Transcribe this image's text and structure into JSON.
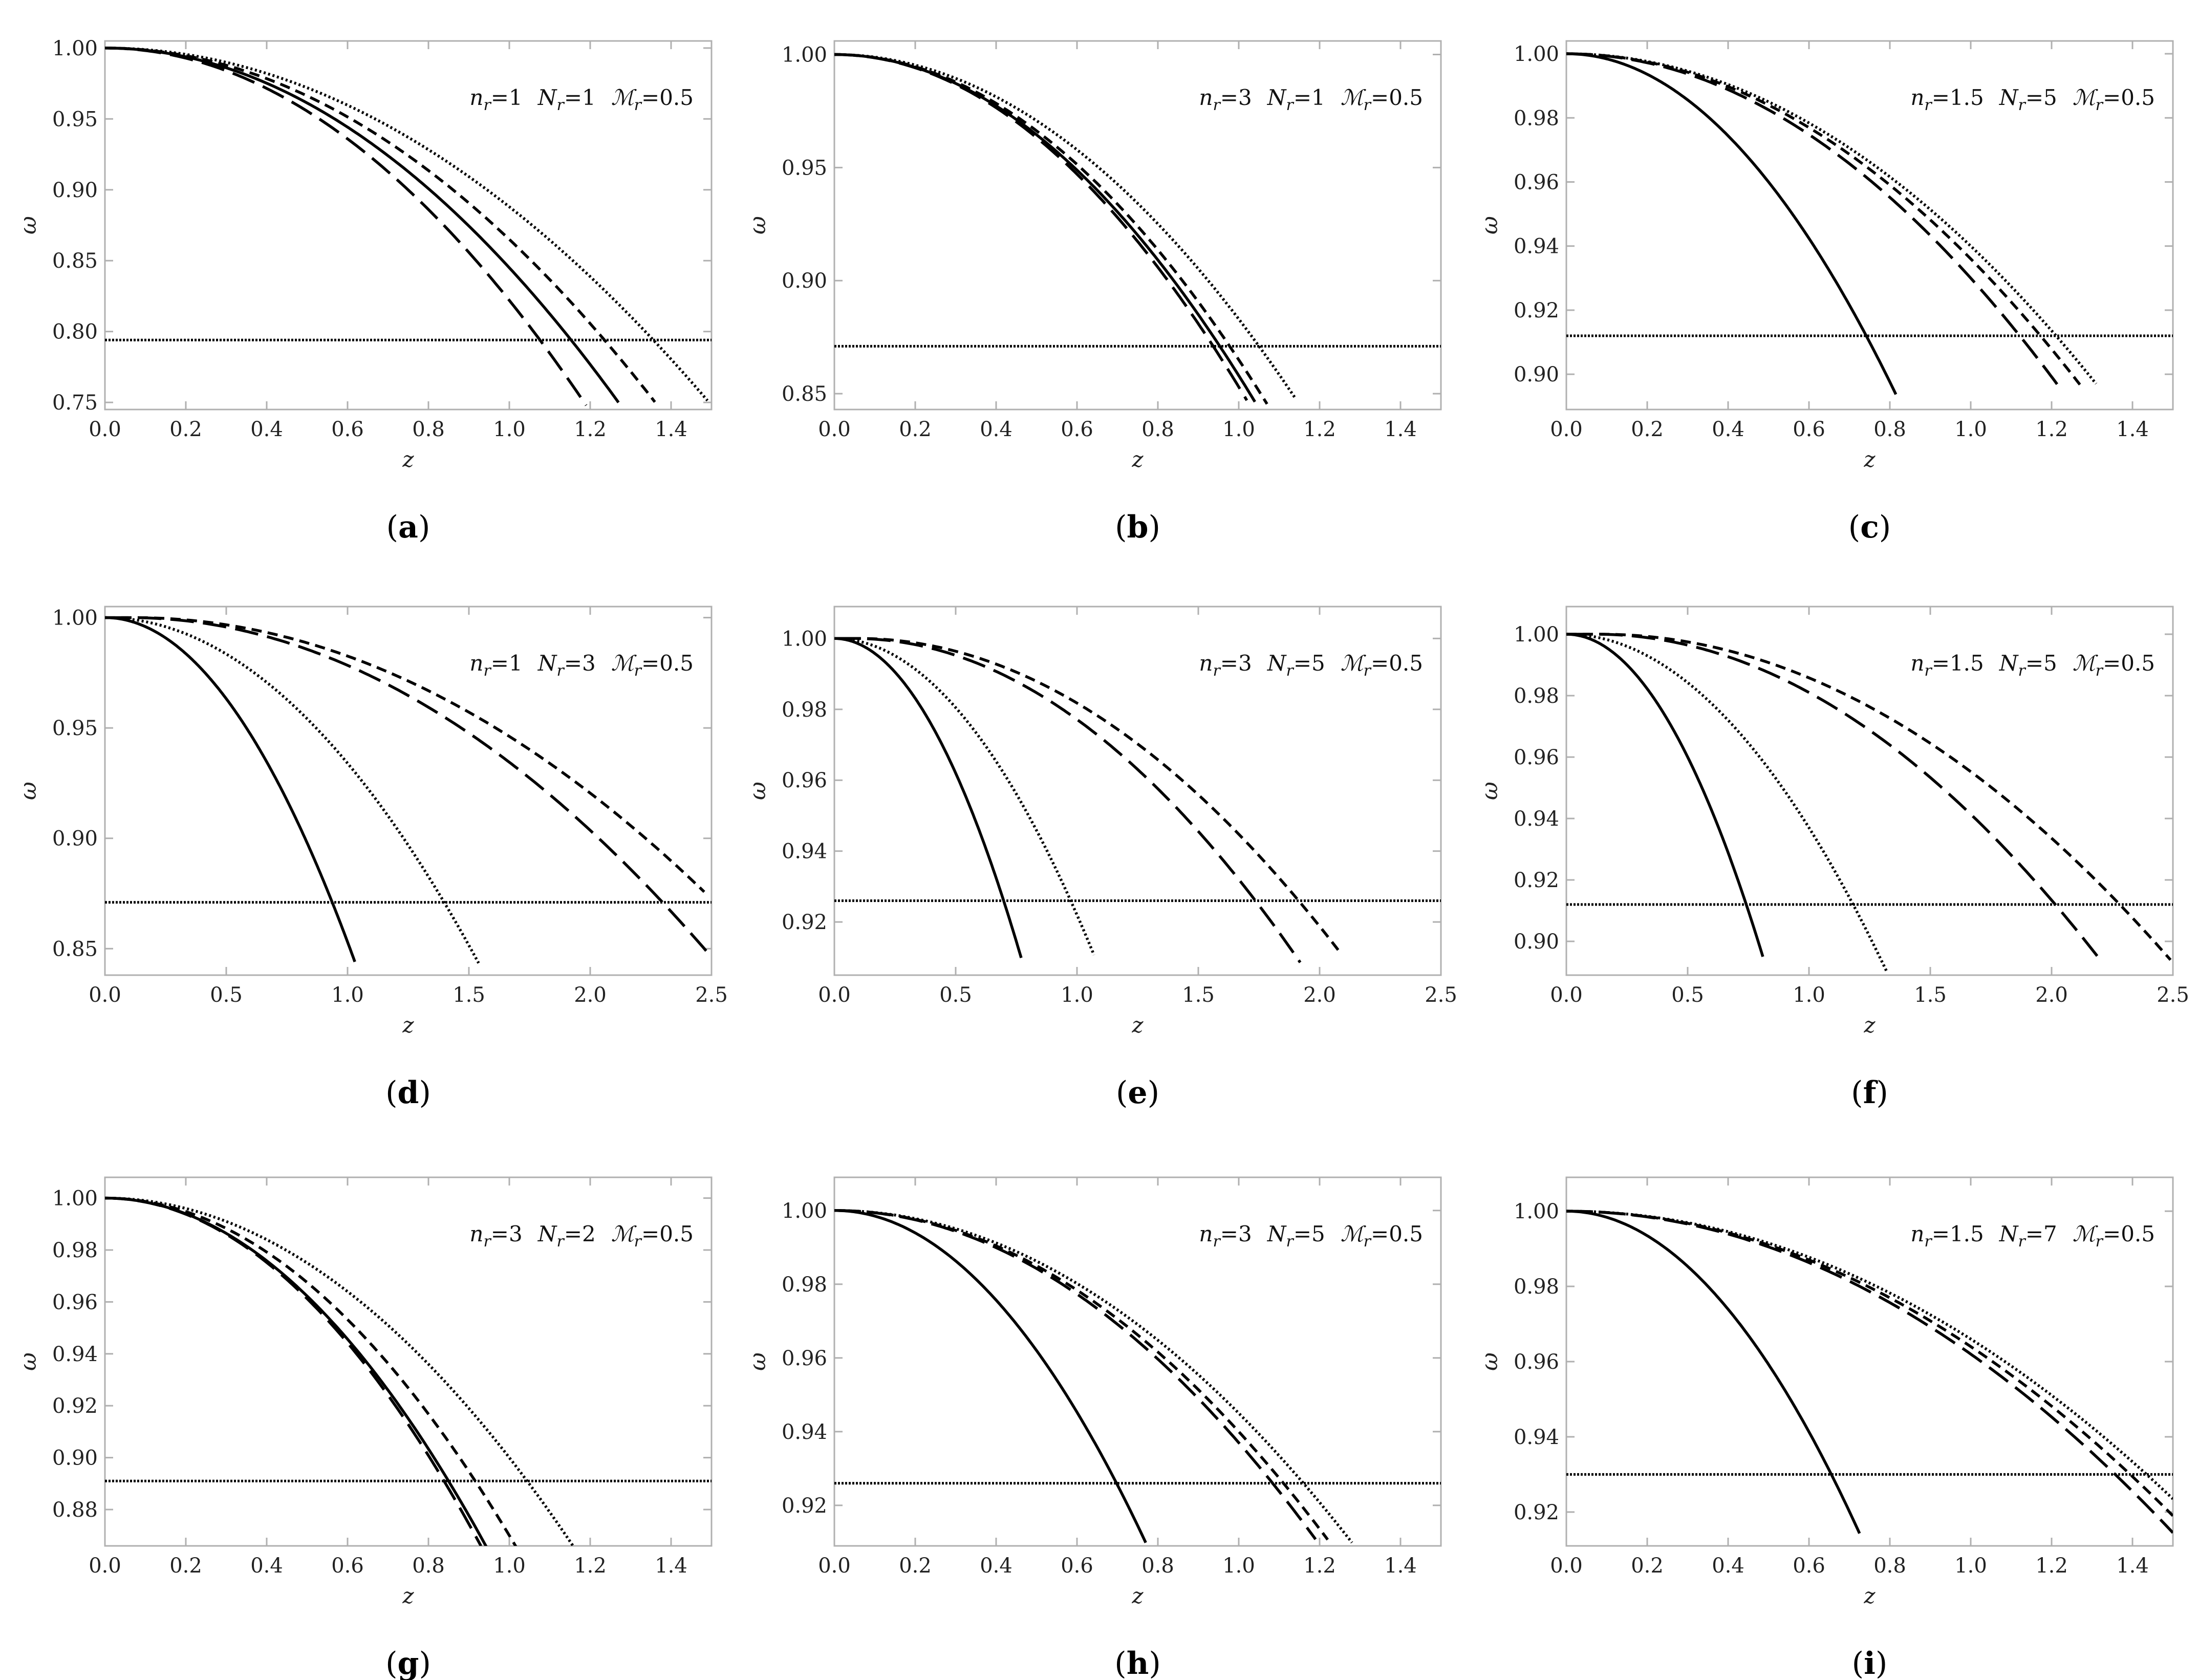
{
  "figure": {
    "background": "#ffffff",
    "axis_color": "#b0b0b0",
    "line_color": "#000000"
  },
  "chart_data": [
    {
      "panel_label": "(a)",
      "type": "line",
      "annotation": {
        "n": "1",
        "N": "1",
        "M": "0.5"
      },
      "xlabel": "z",
      "ylabel": "ω",
      "xlim": [
        0,
        1.5
      ],
      "ylim": [
        0.745,
        1.005
      ],
      "xticks": [
        "0.0",
        "0.2",
        "0.4",
        "0.6",
        "0.8",
        "1.0",
        "1.2",
        "1.4"
      ],
      "yticks": [
        "0.75",
        "0.80",
        "0.85",
        "0.90",
        "0.95",
        "1.00"
      ],
      "hline": 0.794,
      "series": [
        {
          "style": "solid",
          "curve": {
            "z_max": 1.27,
            "coef": 0.155,
            "shift": 0
          }
        },
        {
          "style": "longdash",
          "curve": {
            "z_max": 1.19,
            "coef": 0.178,
            "shift": 0
          }
        },
        {
          "style": "shortdash",
          "curve": {
            "z_max": 1.36,
            "coef": 0.135,
            "shift": 0
          }
        },
        {
          "style": "dotted",
          "curve": {
            "z_max": 1.49,
            "coef": 0.112,
            "shift": 0
          }
        }
      ]
    },
    {
      "panel_label": "(b)",
      "type": "line",
      "annotation": {
        "n": "3",
        "N": "1",
        "M": "0.5"
      },
      "xlabel": "z",
      "ylabel": "ω",
      "xlim": [
        0,
        1.5
      ],
      "ylim": [
        0.843,
        1.006
      ],
      "xticks": [
        "0.0",
        "0.2",
        "0.4",
        "0.6",
        "0.8",
        "1.0",
        "1.2",
        "1.4"
      ],
      "yticks": [
        "0.85",
        "0.90",
        "0.95",
        "1.00"
      ],
      "hline": 0.871,
      "series": [
        {
          "style": "solid",
          "curve": {
            "z_max": 1.04,
            "coef": 0.142,
            "shift": 0
          }
        },
        {
          "style": "longdash",
          "curve": {
            "z_max": 1.02,
            "coef": 0.147,
            "shift": 0
          }
        },
        {
          "style": "shortdash",
          "curve": {
            "z_max": 1.07,
            "coef": 0.135,
            "shift": 0
          }
        },
        {
          "style": "dotted",
          "curve": {
            "z_max": 1.14,
            "coef": 0.117,
            "shift": 0
          }
        }
      ]
    },
    {
      "panel_label": "(c)",
      "type": "line",
      "annotation": {
        "n": "1.5",
        "N": "5",
        "M": "0.5"
      },
      "xlabel": "z",
      "ylabel": "ω",
      "xlim": [
        0,
        1.5
      ],
      "ylim": [
        0.889,
        1.004
      ],
      "xticks": [
        "0.0",
        "0.2",
        "0.4",
        "0.6",
        "0.8",
        "1.0",
        "1.2",
        "1.4"
      ],
      "yticks": [
        "0.90",
        "0.92",
        "0.94",
        "0.96",
        "0.98",
        "1.00"
      ],
      "hline": 0.912,
      "series": [
        {
          "style": "solid",
          "curve": {
            "z_max": 0.815,
            "coef": 0.16,
            "shift": 0
          }
        },
        {
          "style": "longdash",
          "curve": {
            "z_max": 1.22,
            "coef": 0.07,
            "shift": 0
          }
        },
        {
          "style": "shortdash",
          "curve": {
            "z_max": 1.27,
            "coef": 0.064,
            "shift": 0
          }
        },
        {
          "style": "dotted",
          "curve": {
            "z_max": 1.31,
            "coef": 0.06,
            "shift": 0
          }
        }
      ]
    },
    {
      "panel_label": "(d)",
      "type": "line",
      "annotation": {
        "n": "1",
        "N": "3",
        "M": "0.5"
      },
      "xlabel": "z",
      "ylabel": "ω",
      "xlim": [
        0,
        2.5
      ],
      "ylim": [
        0.838,
        1.005
      ],
      "xticks": [
        "0.0",
        "0.5",
        "1.0",
        "1.5",
        "2.0",
        "2.5"
      ],
      "yticks": [
        "0.85",
        "0.90",
        "0.95",
        "1.00"
      ],
      "hline": 0.871,
      "series": [
        {
          "style": "solid",
          "curve": {
            "z_max": 1.03,
            "coef": 0.147,
            "shift": 0
          }
        },
        {
          "style": "dotted",
          "curve": {
            "z_max": 1.54,
            "coef": 0.066,
            "shift": 0
          }
        },
        {
          "style": "longdash",
          "curve": {
            "z_max": 2.48,
            "coef": 0.0267,
            "shift": 0.1
          }
        },
        {
          "style": "shortdash",
          "curve": {
            "z_max": 2.47,
            "coef": 0.0225,
            "shift": 0.12
          }
        }
      ]
    },
    {
      "panel_label": "(e)",
      "type": "line",
      "annotation": {
        "n": "3",
        "N": "5",
        "M": "0.5"
      },
      "xlabel": "z",
      "ylabel": "ω",
      "xlim": [
        0,
        2.5
      ],
      "ylim": [
        0.905,
        1.009
      ],
      "xticks": [
        "0.0",
        "0.5",
        "1.0",
        "1.5",
        "2.0",
        "2.5"
      ],
      "yticks": [
        "0.92",
        "0.94",
        "0.96",
        "0.98",
        "1.00"
      ],
      "hline": 0.926,
      "series": [
        {
          "style": "solid",
          "curve": {
            "z_max": 0.77,
            "coef": 0.152,
            "shift": 0
          }
        },
        {
          "style": "dotted",
          "curve": {
            "z_max": 1.07,
            "coef": 0.078,
            "shift": 0
          }
        },
        {
          "style": "longdash",
          "curve": {
            "z_max": 1.92,
            "coef": 0.027,
            "shift": 0.08
          }
        },
        {
          "style": "shortdash",
          "curve": {
            "z_max": 2.08,
            "coef": 0.0225,
            "shift": 0.1
          }
        }
      ]
    },
    {
      "panel_label": "(f)",
      "type": "line",
      "annotation": {
        "n": "1.5",
        "N": "5",
        "M": "0.5"
      },
      "xlabel": "z",
      "ylabel": "ω",
      "xlim": [
        0,
        2.5
      ],
      "ylim": [
        0.889,
        1.009
      ],
      "xticks": [
        "0.0",
        "0.5",
        "1.0",
        "1.5",
        "2.0",
        "2.5"
      ],
      "yticks": [
        "0.90",
        "0.92",
        "0.94",
        "0.96",
        "0.98",
        "1.00"
      ],
      "hline": 0.912,
      "series": [
        {
          "style": "solid",
          "curve": {
            "z_max": 0.81,
            "coef": 0.16,
            "shift": 0
          }
        },
        {
          "style": "dotted",
          "curve": {
            "z_max": 1.32,
            "coef": 0.063,
            "shift": 0
          }
        },
        {
          "style": "longdash",
          "curve": {
            "z_max": 2.2,
            "coef": 0.0245,
            "shift": 0.12
          }
        },
        {
          "style": "shortdash",
          "curve": {
            "z_max": 2.49,
            "coef": 0.0192,
            "shift": 0.14
          }
        }
      ]
    },
    {
      "panel_label": "(g)",
      "type": "line",
      "annotation": {
        "n": "3",
        "N": "2",
        "M": "0.5"
      },
      "xlabel": "z",
      "ylabel": "ω",
      "xlim": [
        0,
        1.5
      ],
      "ylim": [
        0.866,
        1.008
      ],
      "xticks": [
        "0.0",
        "0.2",
        "0.4",
        "0.6",
        "0.8",
        "1.0",
        "1.2",
        "1.4"
      ],
      "yticks": [
        "0.88",
        "0.90",
        "0.92",
        "0.94",
        "0.96",
        "0.98",
        "1.00"
      ],
      "hline": 0.891,
      "series": [
        {
          "style": "solid",
          "curve": {
            "z_max": 0.95,
            "coef": 0.151,
            "shift": 0
          }
        },
        {
          "style": "longdash",
          "curve": {
            "z_max": 0.93,
            "coef": 0.155,
            "shift": 0
          }
        },
        {
          "style": "shortdash",
          "curve": {
            "z_max": 1.02,
            "coef": 0.13,
            "shift": 0
          }
        },
        {
          "style": "dotted",
          "curve": {
            "z_max": 1.17,
            "coef": 0.1,
            "shift": 0
          }
        }
      ]
    },
    {
      "panel_label": "(h)",
      "type": "line",
      "annotation": {
        "n": "3",
        "N": "5",
        "M": "0.5"
      },
      "xlabel": "z",
      "ylabel": "ω",
      "xlim": [
        0,
        1.5
      ],
      "ylim": [
        0.909,
        1.009
      ],
      "xticks": [
        "0.0",
        "0.2",
        "0.4",
        "0.6",
        "0.8",
        "1.0",
        "1.2",
        "1.4"
      ],
      "yticks": [
        "0.92",
        "0.94",
        "0.96",
        "0.98",
        "1.00"
      ],
      "hline": 0.926,
      "series": [
        {
          "style": "solid",
          "curve": {
            "z_max": 0.77,
            "coef": 0.152,
            "shift": 0
          }
        },
        {
          "style": "longdash",
          "curve": {
            "z_max": 1.19,
            "coef": 0.063,
            "shift": 0
          }
        },
        {
          "style": "shortdash",
          "curve": {
            "z_max": 1.22,
            "coef": 0.06,
            "shift": 0
          }
        },
        {
          "style": "dotted",
          "curve": {
            "z_max": 1.28,
            "coef": 0.055,
            "shift": 0
          }
        }
      ]
    },
    {
      "panel_label": "(i)",
      "type": "line",
      "annotation": {
        "n": "1.5",
        "N": "7",
        "M": "0.5"
      },
      "xlabel": "z",
      "ylabel": "ω",
      "xlim": [
        0,
        1.5
      ],
      "ylim": [
        0.911,
        1.009
      ],
      "xticks": [
        "0.0",
        "0.2",
        "0.4",
        "0.6",
        "0.8",
        "1.0",
        "1.2",
        "1.4"
      ],
      "yticks": [
        "0.92",
        "0.94",
        "0.96",
        "0.98",
        "1.00"
      ],
      "hline": 0.93,
      "series": [
        {
          "style": "solid",
          "curve": {
            "z_max": 0.725,
            "coef": 0.163,
            "shift": 0
          }
        },
        {
          "style": "longdash",
          "curve": {
            "z_max": 1.5,
            "coef": 0.038,
            "shift": 0
          }
        },
        {
          "style": "shortdash",
          "curve": {
            "z_max": 1.5,
            "coef": 0.036,
            "shift": 0
          }
        },
        {
          "style": "dotted",
          "curve": {
            "z_max": 1.5,
            "coef": 0.034,
            "shift": 0
          }
        }
      ]
    }
  ]
}
